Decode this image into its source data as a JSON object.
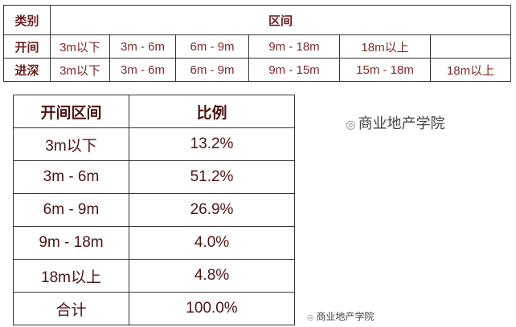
{
  "table1": {
    "header": {
      "category": "类别",
      "range": "区间"
    },
    "rows": [
      {
        "label": "开间",
        "cells": [
          "3m以下",
          "3m - 6m",
          "6m - 9m",
          "9m - 18m",
          "18m以上",
          ""
        ]
      },
      {
        "label": "进深",
        "cells": [
          "3m以下",
          "3m - 6m",
          "6m - 9m",
          "9m - 15m",
          "15m - 18m",
          "18m以上"
        ]
      }
    ]
  },
  "table2": {
    "headers": [
      "开间区间",
      "比例"
    ],
    "rows": [
      [
        "3m以下",
        "13.2%"
      ],
      [
        "3m - 6m",
        "51.2%"
      ],
      [
        "6m - 9m",
        "26.9%"
      ],
      [
        "9m - 18m",
        "4.0%"
      ],
      [
        "18m以上",
        "4.8%"
      ],
      [
        "合计",
        "100.0%"
      ]
    ]
  },
  "watermark": "商业地产学院",
  "colors": {
    "text": "#7a2a2a",
    "text_dark": "#4a1414"
  }
}
